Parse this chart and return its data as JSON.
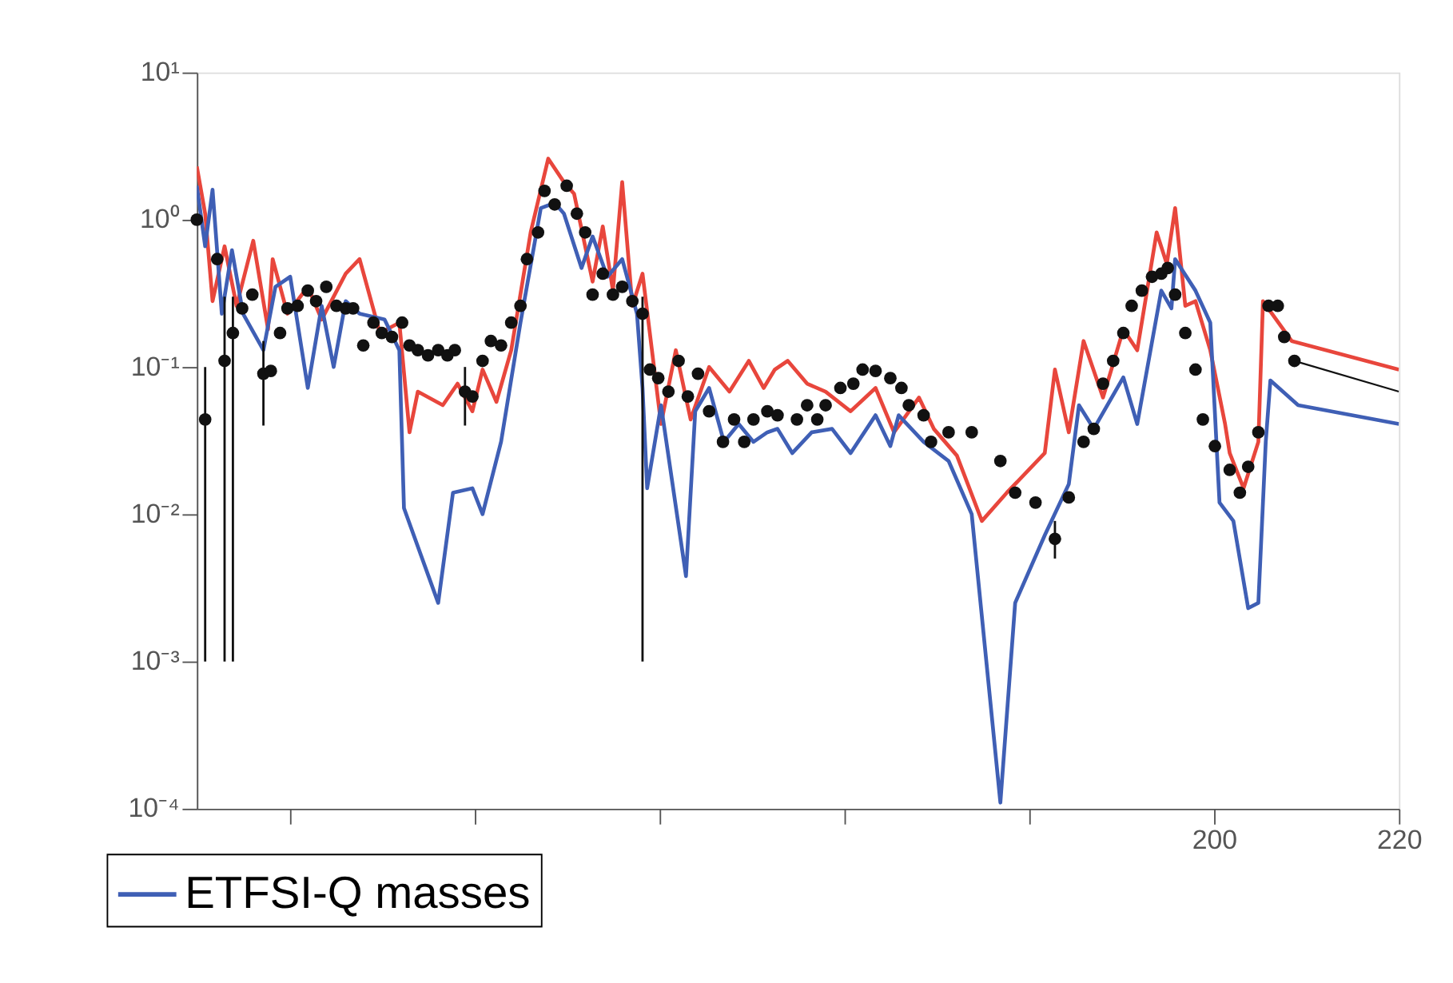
{
  "chart_data": {
    "type": "line",
    "log": "y",
    "legend": "bottom left",
    "grid": false,
    "xlim": [
      90,
      220
    ],
    "xticks": [
      {
        "value": 100,
        "label": null
      },
      {
        "value": 120,
        "label": null
      },
      {
        "value": 140,
        "label": null
      },
      {
        "value": 160,
        "label": null
      },
      {
        "value": 180,
        "label": null
      },
      200,
      220
    ],
    "ylim": [
      0.0001,
      10
    ],
    "yticks": [
      {
        "value": 0.0001,
        "label": "10⁻⁴"
      },
      {
        "value": 0.001,
        "label": "10⁻³"
      },
      {
        "value": 0.01,
        "label": "10⁻²"
      },
      {
        "value": 0.1,
        "label": "10⁻¹"
      },
      {
        "value": 1,
        "label": "10⁰"
      },
      {
        "value": 10,
        "label": "10¹"
      }
    ],
    "series": [
      {
        "type": "line",
        "color": "#e8463c",
        "x": [
          90.0,
          90.9,
          91.7,
          93.0,
          94.3,
          96.1,
          97.7,
          98.2,
          99.8,
          102.0,
          103.5,
          106.1,
          107.6,
          109.8,
          111.9,
          113.0,
          113.9,
          116.6,
          118.2,
          119.8,
          120.9,
          122.4,
          124.0,
          126.1,
          128.0,
          129.7,
          130.8,
          132.8,
          133.9,
          135.0,
          136.0,
          137.1,
          138.2,
          140.2,
          141.8,
          143.4,
          145.4,
          147.6,
          149.7,
          151.3,
          152.5,
          153.9,
          156.0,
          158.0,
          160.7,
          163.4,
          165.4,
          168.1,
          169.7,
          172.2,
          174.9,
          177.6,
          181.7,
          182.8,
          184.3,
          185.9,
          188.0,
          190.2,
          191.7,
          193.8,
          194.9,
          195.8,
          196.9,
          198.0,
          199.6,
          201.2,
          201.7,
          203.2,
          204.8,
          205.3,
          208.4,
          220.0
        ],
        "values": [
          2.3,
          1.1,
          0.28,
          0.66,
          0.26,
          0.72,
          0.18,
          0.54,
          0.23,
          0.35,
          0.21,
          0.43,
          0.54,
          0.17,
          0.2,
          0.036,
          0.068,
          0.055,
          0.077,
          0.05,
          0.096,
          0.058,
          0.13,
          0.82,
          2.6,
          1.8,
          1.5,
          0.38,
          0.9,
          0.33,
          1.8,
          0.26,
          0.43,
          0.041,
          0.13,
          0.044,
          0.1,
          0.068,
          0.11,
          0.072,
          0.096,
          0.11,
          0.077,
          0.068,
          0.05,
          0.072,
          0.036,
          0.062,
          0.038,
          0.025,
          0.009,
          0.014,
          0.026,
          0.096,
          0.036,
          0.15,
          0.062,
          0.18,
          0.13,
          0.82,
          0.5,
          1.2,
          0.26,
          0.28,
          0.13,
          0.041,
          0.026,
          0.015,
          0.031,
          0.28,
          0.15,
          0.096
        ]
      },
      {
        "type": "line",
        "name": "ETFSI-Q masses",
        "color": "#3f5fb5",
        "x": [
          90.0,
          90.9,
          91.7,
          92.7,
          93.8,
          95.0,
          97.2,
          98.5,
          100.1,
          102.0,
          103.5,
          104.8,
          106.1,
          107.6,
          110.3,
          111.9,
          112.4,
          116.1,
          117.7,
          119.8,
          120.9,
          122.9,
          125.0,
          127.2,
          128.7,
          129.7,
          131.6,
          132.8,
          134.4,
          136.0,
          137.6,
          138.2,
          138.7,
          140.2,
          142.9,
          143.9,
          145.4,
          147.0,
          148.6,
          150.2,
          151.7,
          152.8,
          154.4,
          156.5,
          158.7,
          160.7,
          163.4,
          165.0,
          165.9,
          168.6,
          171.3,
          173.8,
          176.9,
          178.5,
          181.7,
          184.3,
          185.4,
          187.0,
          190.2,
          191.7,
          194.3,
          195.4,
          195.8,
          198.0,
          199.6,
          200.6,
          202.1,
          203.7,
          204.8,
          205.6,
          206.1,
          209.1,
          220.0
        ],
        "values": [
          1.7,
          0.66,
          1.6,
          0.23,
          0.62,
          0.23,
          0.13,
          0.35,
          0.41,
          0.072,
          0.26,
          0.1,
          0.28,
          0.23,
          0.21,
          0.13,
          0.011,
          0.0025,
          0.014,
          0.015,
          0.01,
          0.031,
          0.2,
          1.2,
          1.3,
          1.1,
          0.47,
          0.77,
          0.41,
          0.54,
          0.23,
          0.072,
          0.015,
          0.055,
          0.0038,
          0.05,
          0.072,
          0.031,
          0.041,
          0.031,
          0.036,
          0.038,
          0.026,
          0.036,
          0.038,
          0.026,
          0.047,
          0.029,
          0.047,
          0.031,
          0.023,
          0.01,
          0.00011,
          0.0025,
          0.0072,
          0.016,
          0.055,
          0.038,
          0.085,
          0.041,
          0.33,
          0.25,
          0.54,
          0.33,
          0.2,
          0.012,
          0.009,
          0.0023,
          0.0025,
          0.031,
          0.081,
          0.055,
          0.041
        ]
      },
      {
        "type": "line",
        "color": "#111111",
        "x": [
          208.7,
          220.0
        ],
        "values": [
          0.11,
          0.068
        ]
      },
      {
        "type": "scatter",
        "marker": "circle",
        "color": "#111111",
        "x": [
          90.0,
          90.9,
          92.2,
          93.0,
          93.9,
          94.9,
          96.0,
          97.2,
          98.0,
          99.0,
          99.8,
          100.9,
          102.0,
          102.9,
          104.0,
          105.1,
          106.1,
          106.9,
          108.0,
          109.1,
          110.0,
          111.1,
          112.2,
          113.0,
          113.9,
          115.0,
          116.1,
          117.1,
          117.9,
          119.0,
          119.8,
          120.9,
          121.8,
          122.9,
          124.0,
          125.0,
          125.7,
          126.9,
          127.6,
          128.7,
          130.0,
          131.1,
          132.0,
          132.8,
          133.9,
          135.0,
          136.0,
          137.1,
          138.2,
          139.0,
          139.9,
          141.0,
          142.1,
          143.1,
          144.2,
          145.4,
          146.9,
          148.1,
          149.2,
          150.2,
          151.7,
          152.8,
          154.9,
          156.0,
          157.1,
          158.0,
          159.6,
          161.0,
          162.0,
          163.4,
          165.0,
          166.2,
          167.0,
          168.6,
          169.4,
          171.3,
          173.8,
          176.9,
          178.5,
          180.7,
          182.8,
          184.3,
          185.9,
          187.0,
          188.0,
          189.1,
          190.2,
          191.1,
          192.2,
          193.3,
          194.3,
          195.0,
          195.8,
          196.9,
          198.0,
          198.8,
          200.1,
          201.7,
          202.8,
          203.7,
          204.8,
          205.9,
          206.9,
          207.6,
          208.7
        ],
        "values": [
          1.0,
          0.044,
          0.54,
          0.11,
          0.17,
          0.25,
          0.31,
          0.09,
          0.094,
          0.17,
          0.25,
          0.26,
          0.33,
          0.28,
          0.35,
          0.26,
          0.25,
          0.25,
          0.14,
          0.2,
          0.17,
          0.16,
          0.2,
          0.14,
          0.13,
          0.12,
          0.13,
          0.12,
          0.13,
          0.068,
          0.063,
          0.11,
          0.15,
          0.14,
          0.2,
          0.26,
          0.54,
          0.82,
          1.57,
          1.27,
          1.7,
          1.1,
          0.82,
          0.31,
          0.43,
          0.31,
          0.35,
          0.28,
          0.23,
          0.096,
          0.084,
          0.068,
          0.11,
          0.063,
          0.09,
          0.05,
          0.031,
          0.044,
          0.031,
          0.044,
          0.05,
          0.047,
          0.044,
          0.055,
          0.044,
          0.055,
          0.072,
          0.077,
          0.096,
          0.094,
          0.084,
          0.072,
          0.055,
          0.047,
          0.031,
          0.036,
          0.036,
          0.023,
          0.014,
          0.012,
          0.0068,
          0.013,
          0.031,
          0.038,
          0.077,
          0.11,
          0.17,
          0.26,
          0.33,
          0.41,
          0.43,
          0.47,
          0.31,
          0.17,
          0.096,
          0.044,
          0.029,
          0.02,
          0.014,
          0.021,
          0.036,
          0.26,
          0.26,
          0.16,
          0.11
        ],
        "errors": [
          null,
          [
            0.001,
            0.1
          ],
          null,
          [
            0.001,
            0.3
          ],
          [
            0.001,
            0.3
          ],
          null,
          null,
          [
            0.04,
            0.15
          ],
          null,
          null,
          null,
          null,
          null,
          null,
          null,
          null,
          null,
          null,
          null,
          null,
          null,
          null,
          null,
          null,
          null,
          null,
          null,
          null,
          null,
          [
            0.04,
            0.1
          ],
          null,
          null,
          null,
          null,
          null,
          null,
          null,
          null,
          null,
          null,
          null,
          null,
          null,
          null,
          null,
          null,
          null,
          null,
          [
            0.001,
            0.3
          ],
          null,
          null,
          null,
          null,
          null,
          null,
          null,
          null,
          null,
          null,
          null,
          null,
          null,
          null,
          null,
          null,
          null,
          null,
          null,
          null,
          null,
          null,
          null,
          null,
          null,
          null,
          null,
          null,
          null,
          null,
          null,
          [
            0.005,
            0.009
          ],
          null,
          null,
          null,
          null,
          null,
          null,
          null,
          null,
          null,
          null,
          null,
          null,
          null,
          null,
          null,
          null,
          null,
          null,
          null,
          null,
          null,
          null,
          null,
          null
        ]
      }
    ]
  }
}
